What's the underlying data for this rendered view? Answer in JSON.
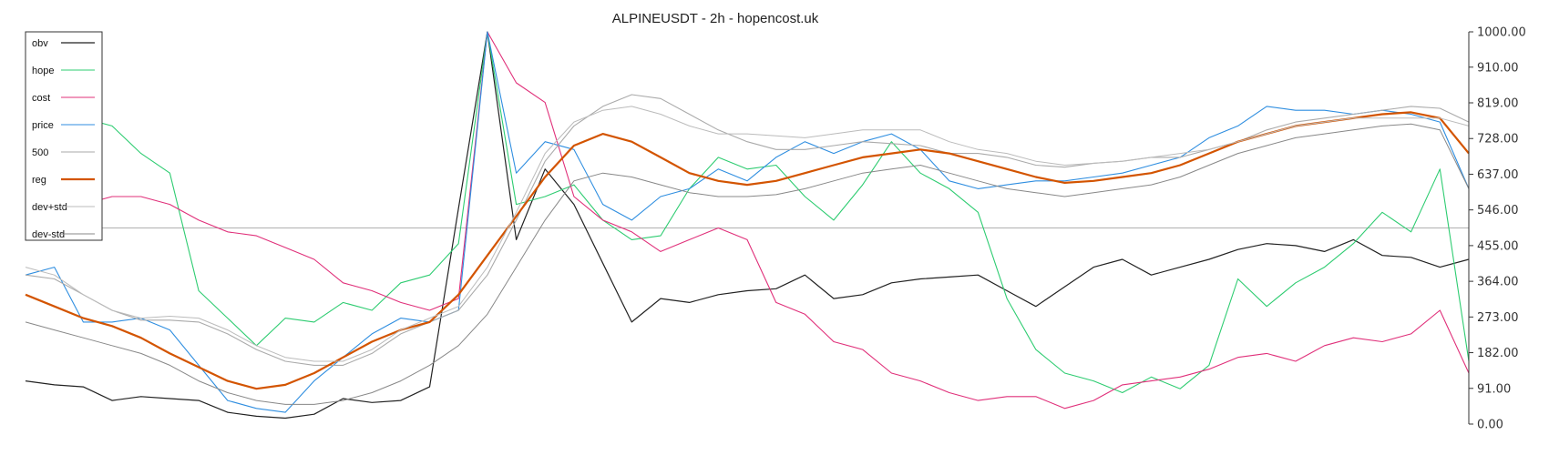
{
  "chart_data": {
    "type": "line",
    "title": "ALPINEUSDT - 2h - hopencost.uk",
    "xlabel": "",
    "ylabel": "",
    "ylim": [
      0,
      1000
    ],
    "y_ticks": [
      "1000.00",
      "910.00",
      "819.00",
      "728.00",
      "637.00",
      "546.00",
      "455.00",
      "364.00",
      "273.00",
      "182.00",
      "91.00",
      "0.00"
    ],
    "y_tick_values": [
      1000,
      910,
      819,
      728,
      637,
      546,
      455,
      364,
      273,
      182,
      91,
      0
    ],
    "grid": false,
    "legend_position": "top-left",
    "reference_line": 500,
    "x": [
      0,
      10,
      20,
      30,
      40,
      50,
      60,
      70,
      80,
      90,
      100,
      110,
      120,
      130,
      140,
      150,
      160,
      170,
      180,
      190,
      200,
      210,
      220,
      230,
      240,
      250,
      260,
      270,
      280,
      290,
      300,
      310,
      320,
      330,
      340,
      350,
      360,
      370,
      380,
      390,
      400,
      410,
      420,
      430,
      440,
      450,
      460,
      470,
      480,
      490,
      500
    ],
    "series": [
      {
        "name": "obv",
        "color": "#222222",
        "width": 1.2,
        "values": [
          110,
          100,
          95,
          60,
          70,
          65,
          60,
          30,
          20,
          15,
          25,
          65,
          55,
          60,
          95,
          550,
          1000,
          470,
          650,
          560,
          410,
          260,
          320,
          310,
          330,
          340,
          345,
          380,
          320,
          330,
          360,
          370,
          375,
          380,
          340,
          300,
          350,
          400,
          420,
          380,
          400,
          420,
          445,
          460,
          455,
          440,
          470,
          430,
          425,
          400,
          420
        ]
      },
      {
        "name": "hope",
        "color": "#2ecc71",
        "width": 1.1,
        "values": [
          880,
          860,
          780,
          760,
          690,
          640,
          340,
          270,
          200,
          270,
          260,
          310,
          290,
          360,
          380,
          460,
          1000,
          560,
          580,
          610,
          520,
          470,
          480,
          600,
          680,
          650,
          660,
          580,
          520,
          610,
          720,
          640,
          600,
          540,
          320,
          190,
          130,
          110,
          80,
          120,
          90,
          150,
          370,
          300,
          360,
          400,
          460,
          540,
          490,
          650,
          160
        ]
      },
      {
        "name": "cost",
        "color": "#e0307a",
        "width": 1.1,
        "values": [
          560,
          550,
          560,
          580,
          580,
          560,
          520,
          490,
          480,
          450,
          420,
          360,
          340,
          310,
          290,
          320,
          1000,
          870,
          820,
          580,
          520,
          490,
          440,
          470,
          500,
          470,
          310,
          280,
          210,
          190,
          130,
          110,
          80,
          60,
          70,
          70,
          40,
          60,
          100,
          110,
          120,
          140,
          170,
          180,
          160,
          200,
          220,
          210,
          230,
          290,
          130
        ]
      },
      {
        "name": "price",
        "color": "#2f8ee0",
        "width": 1.1,
        "values": [
          380,
          400,
          260,
          260,
          270,
          240,
          150,
          60,
          40,
          30,
          110,
          170,
          230,
          270,
          260,
          290,
          1000,
          640,
          720,
          700,
          560,
          520,
          580,
          600,
          650,
          620,
          680,
          720,
          690,
          720,
          740,
          700,
          620,
          600,
          610,
          620,
          620,
          630,
          640,
          660,
          680,
          730,
          760,
          810,
          800,
          800,
          790,
          800,
          790,
          770,
          600
        ]
      },
      {
        "name": "500",
        "color": "#aaaaaa",
        "width": 1.1,
        "values": [
          380,
          370,
          330,
          290,
          265,
          265,
          260,
          230,
          190,
          160,
          150,
          150,
          180,
          230,
          260,
          290,
          380,
          520,
          670,
          760,
          810,
          840,
          830,
          790,
          750,
          720,
          700,
          700,
          710,
          720,
          715,
          710,
          690,
          690,
          680,
          660,
          655,
          665,
          670,
          680,
          680,
          700,
          720,
          750,
          770,
          780,
          790,
          800,
          810,
          805,
          770
        ]
      },
      {
        "name": "reg",
        "color": "#d35400",
        "width": 2.2,
        "values": [
          330,
          300,
          270,
          250,
          220,
          180,
          145,
          110,
          90,
          100,
          130,
          170,
          210,
          240,
          260,
          330,
          430,
          530,
          630,
          710,
          740,
          720,
          680,
          640,
          620,
          610,
          620,
          640,
          660,
          680,
          690,
          700,
          690,
          670,
          650,
          630,
          615,
          620,
          630,
          640,
          660,
          690,
          720,
          740,
          760,
          770,
          780,
          790,
          795,
          780,
          690
        ]
      },
      {
        "name": "dev+std",
        "color": "#bbbbbb",
        "width": 1.0,
        "values": [
          400,
          380,
          330,
          290,
          270,
          275,
          270,
          240,
          200,
          170,
          160,
          160,
          190,
          240,
          270,
          300,
          400,
          540,
          690,
          770,
          800,
          810,
          790,
          760,
          740,
          740,
          735,
          730,
          740,
          750,
          750,
          750,
          720,
          700,
          690,
          670,
          660,
          665,
          670,
          680,
          690,
          700,
          720,
          740,
          760,
          770,
          780,
          780,
          780,
          780,
          760
        ]
      },
      {
        "name": "dev-std",
        "color": "#888888",
        "width": 1.0,
        "values": [
          260,
          240,
          220,
          200,
          180,
          150,
          110,
          80,
          60,
          50,
          50,
          60,
          80,
          110,
          150,
          200,
          280,
          400,
          520,
          620,
          640,
          630,
          610,
          590,
          580,
          580,
          585,
          600,
          620,
          640,
          650,
          660,
          640,
          620,
          600,
          590,
          580,
          590,
          600,
          610,
          630,
          660,
          690,
          710,
          730,
          740,
          750,
          760,
          765,
          750,
          600
        ]
      }
    ]
  }
}
